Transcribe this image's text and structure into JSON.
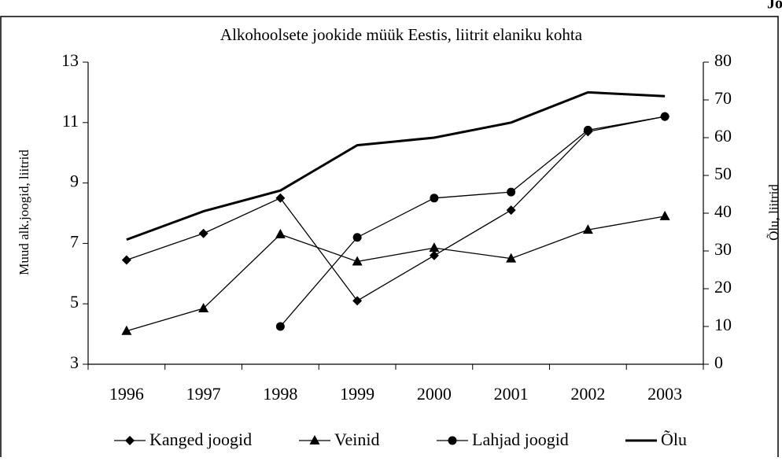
{
  "chart_data": {
    "type": "line",
    "corner_text": "Jo",
    "title": "Alkohoolsete jookide müük Eestis, liitrit elaniku kohta",
    "y_label": "Muud alk.joogid, liitrid",
    "y2_label": "Õlu, liitrid",
    "categories": [
      "1996",
      "1997",
      "1998",
      "1999",
      "2000",
      "2001",
      "2002",
      "2003"
    ],
    "ylim": [
      3,
      13
    ],
    "yticks": [
      3,
      5,
      7,
      9,
      11,
      13
    ],
    "y2lim": [
      0,
      80
    ],
    "y2ticks": [
      0,
      10,
      20,
      30,
      40,
      50,
      60,
      70,
      80
    ],
    "grid": false,
    "legend": "bottom",
    "series": [
      {
        "name": "Kanged joogid",
        "color": "#000000",
        "marker": "diamond",
        "values": [
          6.45,
          7.33,
          8.5,
          5.1,
          6.6,
          8.1,
          10.7,
          11.2
        ]
      },
      {
        "name": "Veinid",
        "color": "#000000",
        "marker": "triangle",
        "values": [
          4.1,
          4.85,
          7.3,
          6.4,
          6.85,
          6.5,
          7.45,
          7.9
        ]
      },
      {
        "name": "Lahjad joogid",
        "color": "#000000",
        "marker": "circle",
        "values": [
          null,
          null,
          4.25,
          7.2,
          8.5,
          8.7,
          10.75,
          11.2
        ]
      },
      {
        "name": "Õlu",
        "color": "#000000",
        "marker": "none",
        "axis": "y2",
        "values": [
          33,
          40.5,
          46,
          58,
          60,
          64,
          72,
          71
        ]
      }
    ]
  }
}
